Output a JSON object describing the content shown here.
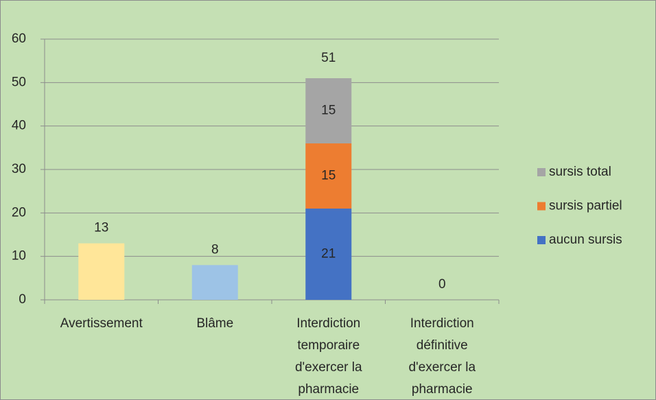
{
  "chart_data": {
    "type": "bar",
    "categories": [
      "Avertissement",
      "Blâme",
      "Interdiction temporaire d'exercer la pharmacie",
      "Interdiction définitive d'exercer la pharmacie"
    ],
    "values": [
      13,
      8,
      51,
      0
    ],
    "colors": [
      "#FFE699",
      "#9DC3E6",
      null,
      null
    ],
    "series": [
      {
        "name": "aucun sursis",
        "color": "#4472C4",
        "values": [
          null,
          null,
          21,
          null
        ]
      },
      {
        "name": "sursis partiel",
        "color": "#ED7D31",
        "values": [
          null,
          null,
          15,
          null
        ]
      },
      {
        "name": "sursis total",
        "color": "#A5A5A5",
        "values": [
          null,
          null,
          15,
          null
        ]
      }
    ],
    "ylim": [
      0,
      60
    ],
    "yticks": [
      0,
      10,
      20,
      30,
      40,
      50,
      60
    ],
    "grid": true,
    "legend": "right"
  }
}
